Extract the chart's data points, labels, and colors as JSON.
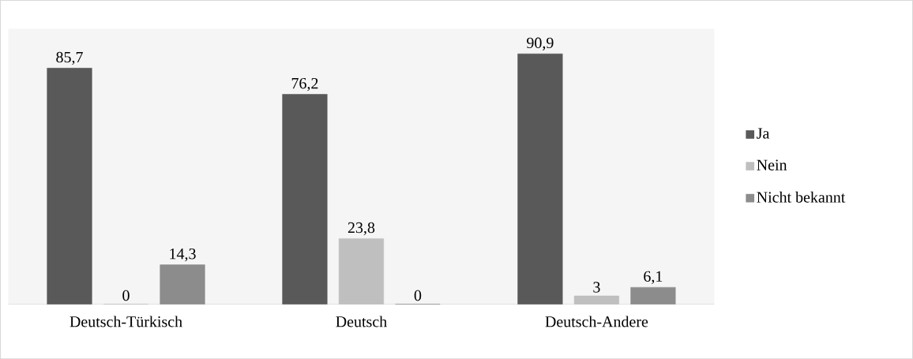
{
  "chart_data": {
    "type": "bar",
    "categories": [
      "Deutsch-Türkisch",
      "Deutsch",
      "Deutsch-Andere"
    ],
    "series": [
      {
        "name": "Ja",
        "color": "#595959",
        "values": [
          85.7,
          76.2,
          90.9
        ],
        "value_labels": [
          "85,7",
          "76,2",
          "90,9"
        ]
      },
      {
        "name": "Nein",
        "color": "#bfbfbf",
        "values": [
          0,
          23.8,
          3
        ],
        "value_labels": [
          "0",
          "23,8",
          "3"
        ]
      },
      {
        "name": "Nicht bekannt",
        "color": "#8c8c8c",
        "values": [
          14.3,
          0,
          6.1
        ],
        "value_labels": [
          "14,3",
          "0",
          "6,1"
        ]
      }
    ],
    "legend": "right"
  }
}
